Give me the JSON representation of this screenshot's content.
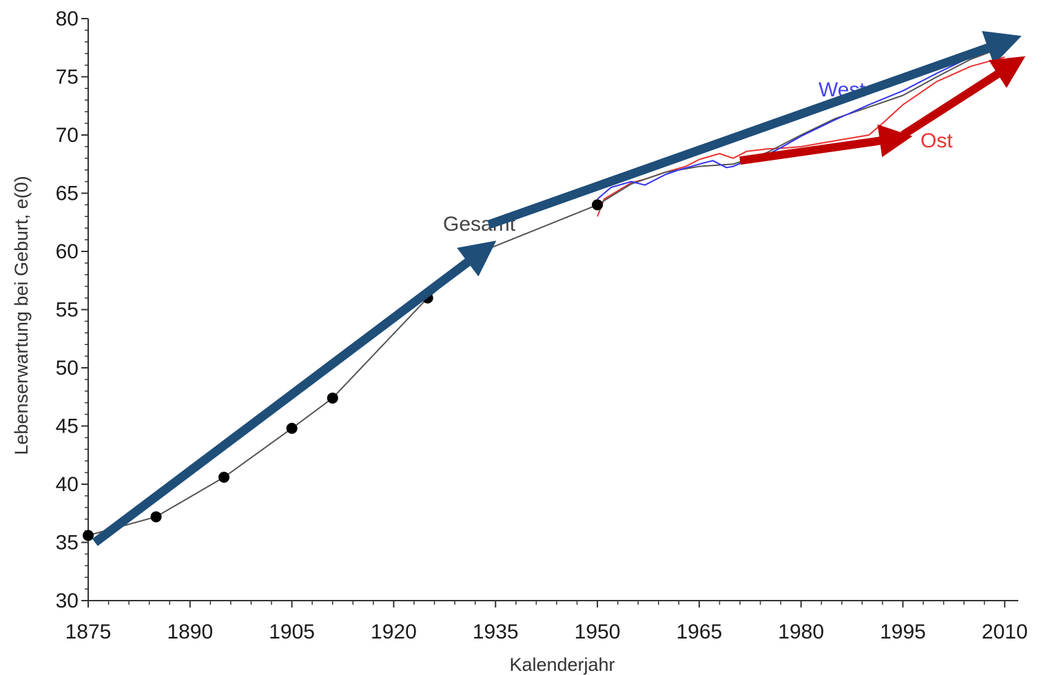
{
  "chart_data": {
    "type": "line",
    "title": "",
    "xlabel": "Kalenderjahr",
    "ylabel": "Lebenserwartung bei Geburt, e(0)",
    "xlim": [
      1875,
      2012
    ],
    "ylim": [
      30,
      80
    ],
    "x_ticks": [
      1875,
      1890,
      1905,
      1920,
      1935,
      1950,
      1965,
      1980,
      1995,
      2010
    ],
    "y_ticks": [
      30,
      35,
      40,
      45,
      50,
      55,
      60,
      65,
      70,
      75,
      80
    ],
    "grid": false,
    "series": [
      {
        "name": "Gesamt",
        "color": "#555555",
        "marker": "dot",
        "points": [
          [
            1875,
            35.6
          ],
          [
            1885,
            37.2
          ],
          [
            1895,
            40.6
          ],
          [
            1905,
            44.8
          ],
          [
            1911,
            47.4
          ],
          [
            1925,
            56.0
          ],
          [
            1933,
            60.0
          ],
          [
            1950,
            64.0
          ],
          [
            1955,
            65.8
          ],
          [
            1960,
            66.8
          ],
          [
            1965,
            67.3
          ],
          [
            1970,
            67.5
          ],
          [
            1975,
            68.5
          ],
          [
            1980,
            70.0
          ],
          [
            1985,
            71.4
          ],
          [
            1990,
            72.4
          ],
          [
            1995,
            73.4
          ],
          [
            2000,
            75.0
          ],
          [
            2005,
            76.5
          ],
          [
            2010,
            77.6
          ]
        ]
      },
      {
        "name": "West",
        "color": "#3333ee",
        "marker": "none",
        "points": [
          [
            1950,
            64.5
          ],
          [
            1952,
            65.5
          ],
          [
            1955,
            66.0
          ],
          [
            1957,
            65.7
          ],
          [
            1960,
            66.6
          ],
          [
            1962,
            67.0
          ],
          [
            1965,
            67.5
          ],
          [
            1967,
            67.8
          ],
          [
            1969,
            67.2
          ],
          [
            1970,
            67.3
          ],
          [
            1972,
            67.8
          ],
          [
            1975,
            68.3
          ],
          [
            1977,
            68.9
          ],
          [
            1980,
            69.9
          ],
          [
            1985,
            71.3
          ],
          [
            1990,
            72.6
          ],
          [
            1995,
            73.8
          ],
          [
            2000,
            75.3
          ],
          [
            2005,
            76.7
          ],
          [
            2010,
            77.9
          ]
        ]
      },
      {
        "name": "Ost",
        "color": "#ee3333",
        "marker": "none",
        "points": [
          [
            1950,
            63.0
          ],
          [
            1951,
            64.5
          ],
          [
            1953,
            65.2
          ],
          [
            1955,
            65.9
          ],
          [
            1957,
            66.2
          ],
          [
            1960,
            66.8
          ],
          [
            1963,
            67.3
          ],
          [
            1965,
            67.9
          ],
          [
            1968,
            68.4
          ],
          [
            1970,
            68.0
          ],
          [
            1972,
            68.6
          ],
          [
            1975,
            68.8
          ],
          [
            1978,
            68.9
          ],
          [
            1980,
            69.0
          ],
          [
            1985,
            69.5
          ],
          [
            1988,
            69.8
          ],
          [
            1990,
            70.0
          ],
          [
            1992,
            71.0
          ],
          [
            1995,
            72.6
          ],
          [
            2000,
            74.6
          ],
          [
            2005,
            75.9
          ],
          [
            2010,
            76.7
          ]
        ]
      }
    ],
    "trend_arrows": [
      {
        "color": "#1f4e79",
        "from": [
          1876,
          35.0
        ],
        "to": [
          1933,
          60.0
        ]
      },
      {
        "color": "#1f4e79",
        "from": [
          1934,
          62.3
        ],
        "to": [
          2010,
          78.0
        ]
      },
      {
        "color": "#c00000",
        "from": [
          1971,
          67.8
        ],
        "to": [
          1994,
          69.7
        ]
      },
      {
        "color": "#c00000",
        "from": [
          1995,
          70.0
        ],
        "to": [
          2011,
          76.0
        ]
      }
    ]
  }
}
